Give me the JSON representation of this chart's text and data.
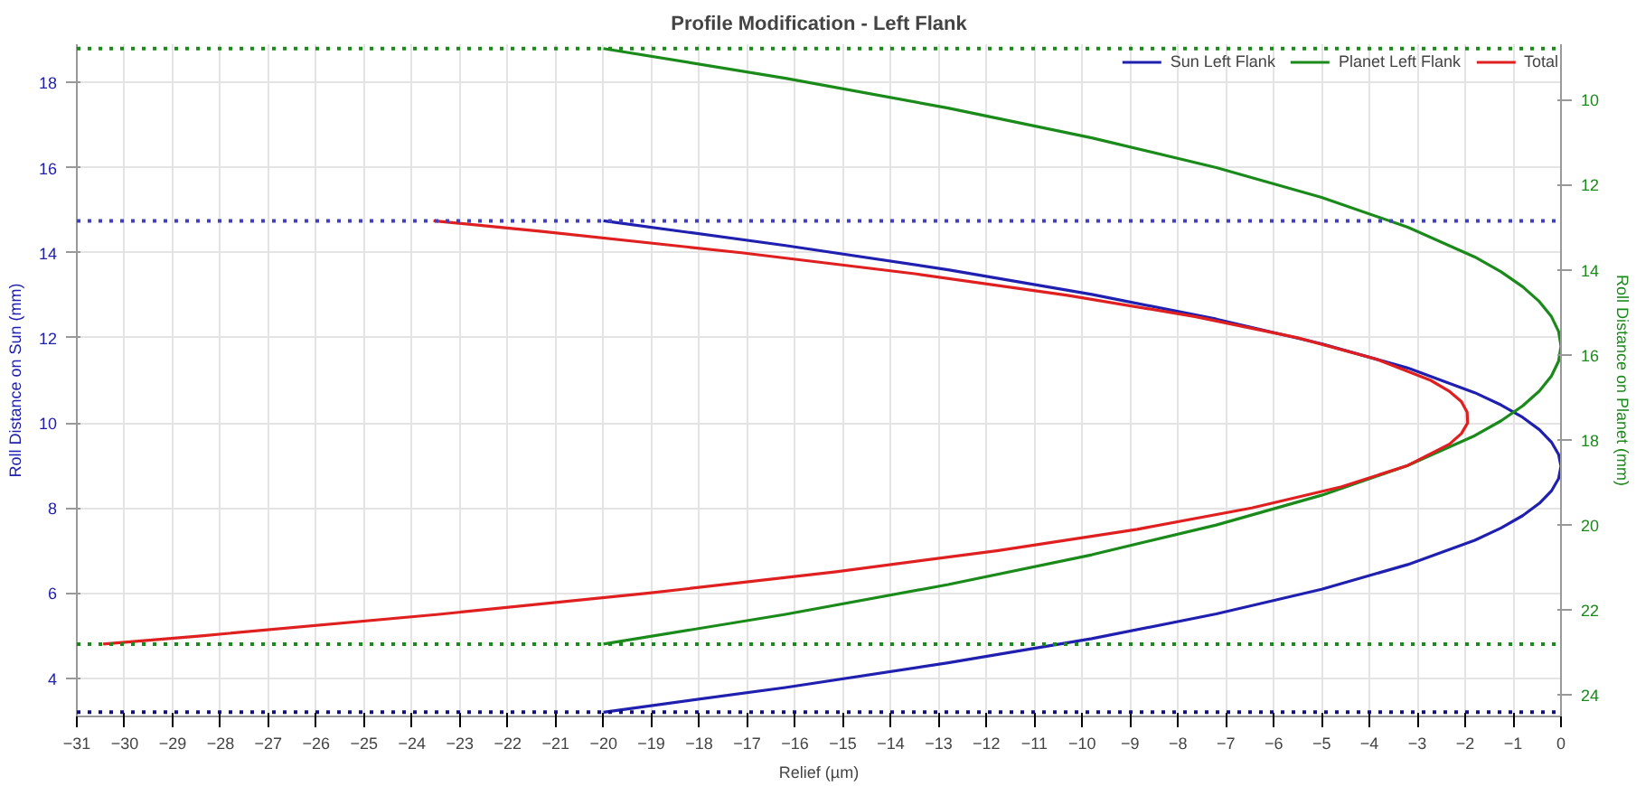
{
  "chart_data": {
    "type": "line",
    "title": "Profile Modification - Left Flank",
    "xlabel": "Relief (µm)",
    "ylabel": "Roll Distance on Sun (mm)",
    "y2label": "Roll Distance on Planet (mm)",
    "xlim": [
      -31,
      0
    ],
    "xticks": [
      -31,
      -30,
      -29,
      -28,
      -27,
      -26,
      -25,
      -24,
      -23,
      -22,
      -21,
      -20,
      -19,
      -18,
      -17,
      -16,
      -15,
      -14,
      -13,
      -12,
      -11,
      -10,
      -9,
      -8,
      -7,
      -6,
      -5,
      -4,
      -3,
      -2,
      -1,
      0
    ],
    "ylim": [
      3.1,
      18.9
    ],
    "yticks": [
      4,
      6,
      8,
      10,
      12,
      14,
      16,
      18
    ],
    "y2lim": [
      24.5,
      8.7
    ],
    "y2ticks": [
      10,
      12,
      14,
      16,
      18,
      20,
      22,
      24
    ],
    "grid": true,
    "legend": "top right",
    "line_style": "solid",
    "marker": "none",
    "series": [
      {
        "name": "Sun Left Flank",
        "color": "#2020b0",
        "x": [
          -20,
          -16.2,
          -12.8,
          -9.8,
          -7.2,
          -5,
          -3.2,
          -1.8,
          -1.25,
          -0.8,
          -0.45,
          -0.2,
          -0.05,
          0,
          -0.05,
          -0.2,
          -0.45,
          -0.8,
          -1.25,
          -1.8,
          -3.2,
          -5,
          -7.2,
          -9.8,
          -12.8,
          -16.2,
          -20
        ],
        "values": [
          3.2,
          3.78,
          4.36,
          4.93,
          5.51,
          6.09,
          6.67,
          7.24,
          7.53,
          7.82,
          8.11,
          8.4,
          8.69,
          8.98,
          9.26,
          9.55,
          9.84,
          10.13,
          10.42,
          10.71,
          11.29,
          11.86,
          12.44,
          13.02,
          13.6,
          14.17,
          14.75
        ]
      },
      {
        "name": "Planet Left Flank",
        "color": "#1a8a1a",
        "axis": "y2",
        "x": [
          -20,
          -16.2,
          -12.8,
          -9.8,
          -7.2,
          -5,
          -3.2,
          -1.8,
          -1.25,
          -0.8,
          -0.45,
          -0.2,
          -0.05,
          0,
          -0.05,
          -0.2,
          -0.45,
          -0.8,
          -1.25,
          -1.8,
          -3.2,
          -5,
          -7.2,
          -9.8,
          -12.8,
          -16.2,
          -20
        ],
        "values": [
          8.8,
          9.5,
          10.2,
          10.9,
          11.6,
          12.3,
          13.0,
          13.7,
          14.05,
          14.4,
          14.75,
          15.1,
          15.45,
          15.8,
          16.15,
          16.5,
          16.85,
          17.2,
          17.55,
          17.9,
          18.6,
          19.3,
          20.0,
          20.7,
          21.4,
          22.1,
          22.8
        ]
      },
      {
        "name": "Total",
        "color": "#e02020",
        "x": [
          -30.45,
          -28.35,
          -23.44,
          -19.04,
          -15.14,
          -11.75,
          -8.85,
          -6.46,
          -4.58,
          -3.2,
          -2.33,
          -2.08,
          -1.95,
          -1.96,
          -2.08,
          -2.34,
          -2.72,
          -3.86,
          -5.5,
          -7.65,
          -10.31,
          -13.46,
          -17.12,
          -21.29,
          -23.55
        ],
        "values": [
          4.8,
          5.0,
          5.5,
          6.0,
          6.5,
          7.0,
          7.5,
          8.0,
          8.5,
          9.0,
          9.5,
          9.75,
          10.0,
          10.25,
          10.5,
          10.75,
          11.0,
          11.5,
          12.0,
          12.5,
          13.0,
          13.5,
          14.0,
          14.5,
          14.75
        ]
      }
    ],
    "ref_lines": [
      {
        "axis": "y",
        "value": 14.75,
        "color": "#4040c0",
        "line_style": "dotted"
      },
      {
        "axis": "y",
        "value": 3.2,
        "color": "#101080",
        "line_style": "dotted"
      },
      {
        "axis": "y2",
        "value": 8.8,
        "color": "#1a8a1a",
        "line_style": "dotted"
      },
      {
        "axis": "y2",
        "value": 22.8,
        "color": "#1a8a1a",
        "line_style": "dotted"
      }
    ]
  }
}
